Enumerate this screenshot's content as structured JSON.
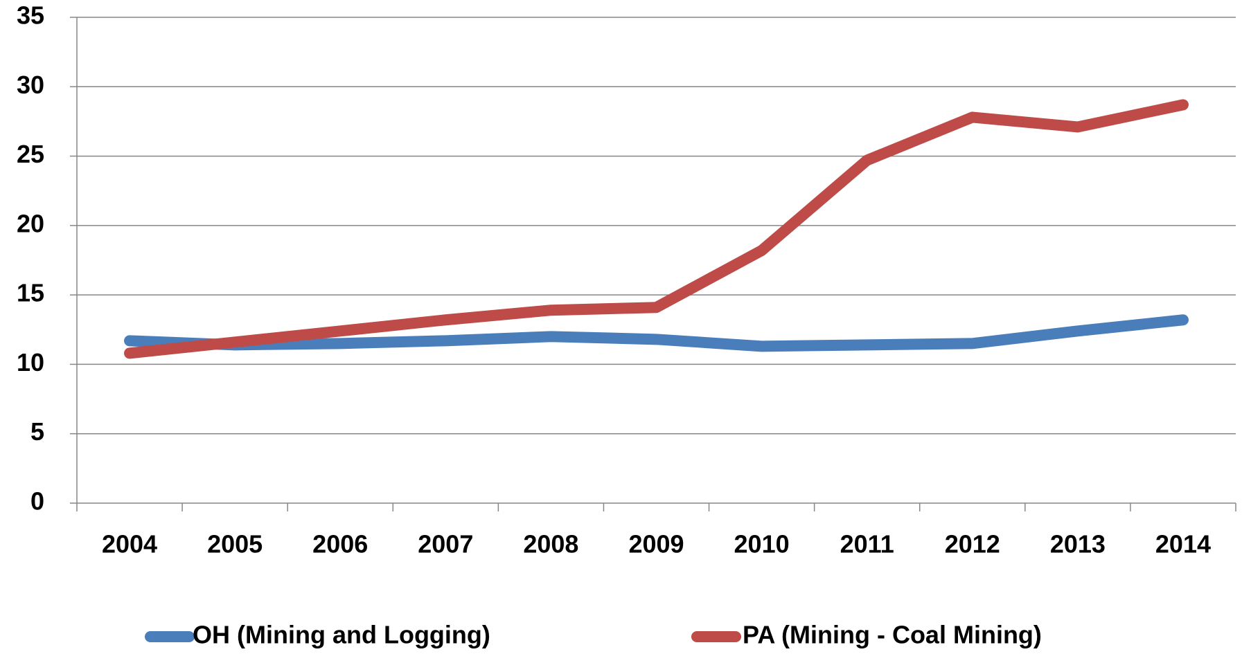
{
  "chart_data": {
    "type": "line",
    "categories": [
      "2004",
      "2005",
      "2006",
      "2007",
      "2008",
      "2009",
      "2010",
      "2011",
      "2012",
      "2013",
      "2014"
    ],
    "series": [
      {
        "name": "OH (Mining and Logging)",
        "color": "#4a7ebb",
        "values": [
          11.7,
          11.4,
          11.5,
          11.7,
          12.0,
          11.8,
          11.3,
          11.4,
          11.5,
          12.4,
          13.2
        ]
      },
      {
        "name": "PA (Mining - Coal Mining)",
        "color": "#be4b48",
        "values": [
          10.8,
          11.6,
          12.4,
          13.2,
          13.9,
          14.1,
          18.2,
          24.7,
          27.8,
          27.1,
          28.7
        ]
      }
    ],
    "ylim": [
      0,
      35
    ],
    "yticks": [
      0,
      5,
      10,
      15,
      20,
      25,
      30,
      35
    ],
    "grid": true,
    "legend": "bottom"
  }
}
